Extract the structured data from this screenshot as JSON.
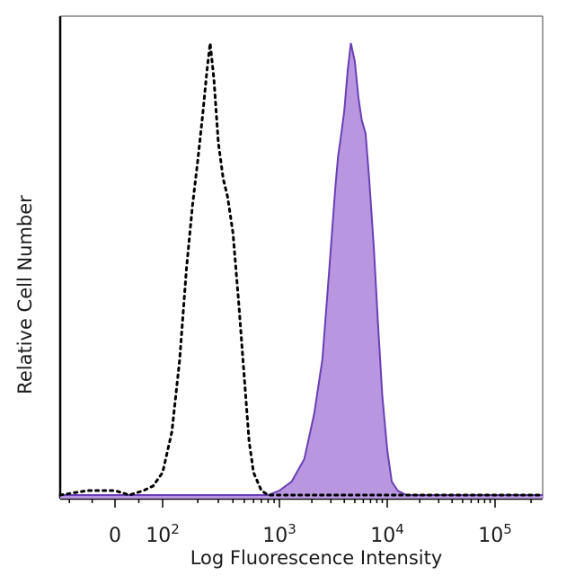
{
  "chart_data": {
    "type": "line",
    "xlabel": "Log Fluorescence Intensity",
    "ylabel": "Relative Cell Number",
    "x_scale": "biexponential-log",
    "xlim": [
      -120,
      250000
    ],
    "ylim": [
      0,
      1.05
    ],
    "grid": false,
    "legend": "none",
    "x_ticks": [
      {
        "value": 0,
        "base": "0",
        "exp": ""
      },
      {
        "value": 100,
        "base": "10",
        "exp": "2"
      },
      {
        "value": 1000,
        "base": "10",
        "exp": "3"
      },
      {
        "value": 10000,
        "base": "10",
        "exp": "4"
      },
      {
        "value": 100000,
        "base": "10",
        "exp": "5"
      }
    ],
    "series": [
      {
        "style": "dotted",
        "color": "#000000",
        "fill": "",
        "points": [
          [
            -120,
            0.0
          ],
          [
            -60,
            0.01
          ],
          [
            0,
            0.01
          ],
          [
            30,
            0.0
          ],
          [
            60,
            0.01
          ],
          [
            80,
            0.02
          ],
          [
            100,
            0.05
          ],
          [
            120,
            0.14
          ],
          [
            140,
            0.3
          ],
          [
            160,
            0.5
          ],
          [
            180,
            0.64
          ],
          [
            200,
            0.74
          ],
          [
            220,
            0.84
          ],
          [
            240,
            0.94
          ],
          [
            255,
            1.0
          ],
          [
            275,
            0.92
          ],
          [
            300,
            0.78
          ],
          [
            330,
            0.7
          ],
          [
            360,
            0.66
          ],
          [
            400,
            0.58
          ],
          [
            450,
            0.42
          ],
          [
            500,
            0.26
          ],
          [
            550,
            0.12
          ],
          [
            600,
            0.05
          ],
          [
            700,
            0.01
          ],
          [
            800,
            0.0
          ],
          [
            2000,
            0.0
          ],
          [
            10000,
            0.0
          ],
          [
            100000,
            0.0
          ],
          [
            250000,
            0.0
          ]
        ]
      },
      {
        "style": "solid",
        "color": "#6a3fb5",
        "fill": "#b897e0",
        "points": [
          [
            -120,
            0.0
          ],
          [
            800,
            0.0
          ],
          [
            1000,
            0.01
          ],
          [
            1300,
            0.03
          ],
          [
            1700,
            0.08
          ],
          [
            2100,
            0.18
          ],
          [
            2500,
            0.3
          ],
          [
            2900,
            0.5
          ],
          [
            3300,
            0.68
          ],
          [
            3500,
            0.75
          ],
          [
            3700,
            0.79
          ],
          [
            4000,
            0.85
          ],
          [
            4300,
            0.94
          ],
          [
            4600,
            1.0
          ],
          [
            5000,
            0.96
          ],
          [
            5400,
            0.88
          ],
          [
            5800,
            0.83
          ],
          [
            6300,
            0.8
          ],
          [
            6800,
            0.7
          ],
          [
            7500,
            0.55
          ],
          [
            8200,
            0.38
          ],
          [
            9000,
            0.22
          ],
          [
            10000,
            0.1
          ],
          [
            11000,
            0.03
          ],
          [
            12500,
            0.01
          ],
          [
            15000,
            0.0
          ],
          [
            250000,
            0.0
          ]
        ]
      }
    ]
  }
}
